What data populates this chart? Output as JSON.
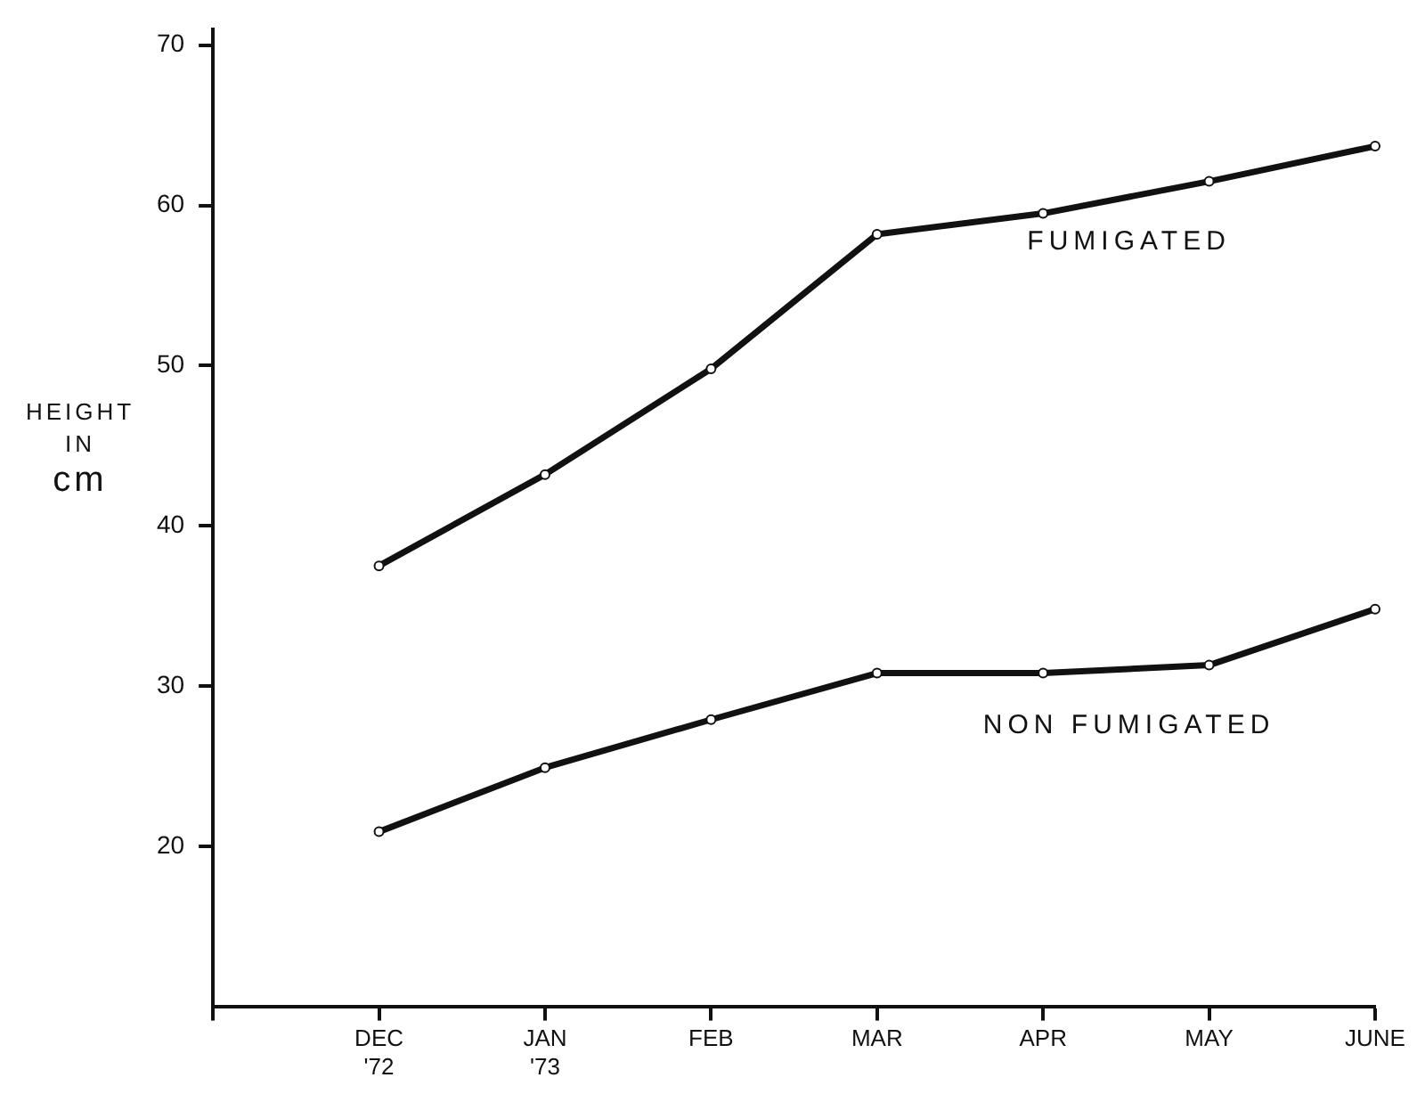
{
  "chart_data": {
    "type": "line",
    "ylabel": "HEIGHT IN cm",
    "categories": [
      null,
      "DEC '72",
      "JAN '73",
      "FEB",
      "MAR",
      "APR",
      "MAY",
      "JUNE"
    ],
    "series": [
      {
        "name": "FUMIGATED",
        "color": "#111111",
        "values": [
          null,
          37.5,
          43.2,
          49.8,
          58.2,
          59.5,
          61.5,
          63.7
        ]
      },
      {
        "name": "NON FUMIGATED",
        "color": "#111111",
        "values": [
          null,
          20.9,
          24.9,
          27.9,
          30.8,
          30.8,
          31.3,
          34.8
        ]
      }
    ],
    "ylim": [
      10,
      71
    ],
    "yticks": [
      20,
      30,
      40,
      50,
      60,
      70
    ],
    "grid": false,
    "legend": false,
    "marker": "circle",
    "line_style": "solid"
  }
}
